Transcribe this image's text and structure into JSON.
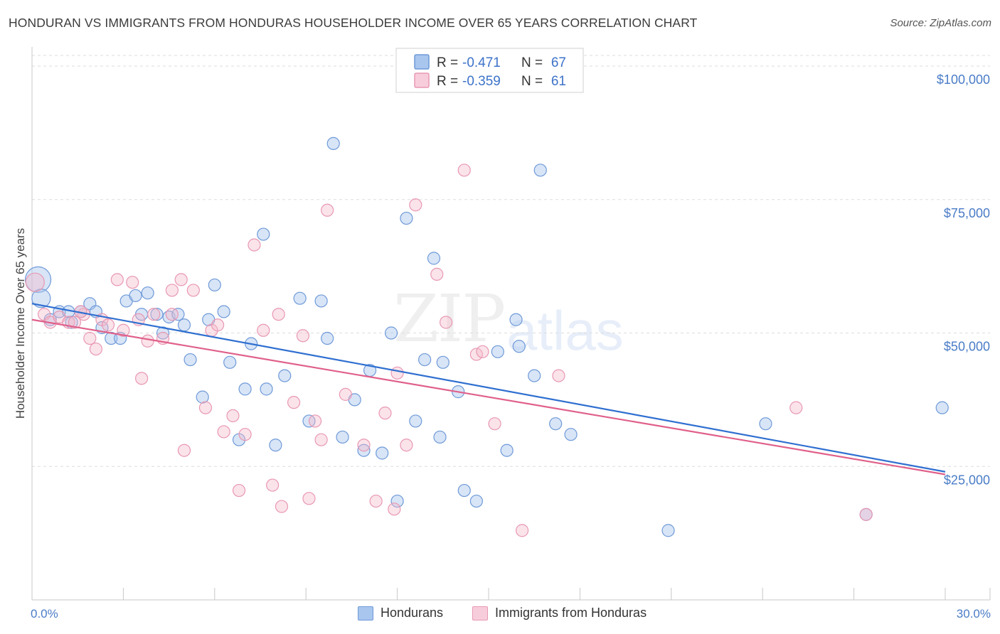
{
  "title": "HONDURAN VS IMMIGRANTS FROM HONDURAS HOUSEHOLDER INCOME OVER 65 YEARS CORRELATION CHART",
  "source": "Source: ZipAtlas.com",
  "watermark": {
    "zip": "ZIP",
    "atlas": "atlas"
  },
  "colors": {
    "blue": "#4a7cc7",
    "blue_fill": "#a9c6ee",
    "pink": "#e0708f",
    "pink_fill": "#f5b8cb",
    "blue_line": "#2f6fd0",
    "pink_line": "#e0608a"
  },
  "legend": {
    "blue": {
      "r_label": "R =",
      "r": "-0.471",
      "n_label": "N =",
      "n": "67"
    },
    "pink": {
      "r_label": "R =",
      "r": "-0.359",
      "n_label": "N =",
      "n": "61"
    }
  },
  "chart_data": {
    "type": "scatter",
    "title": "HONDURAN VS IMMIGRANTS FROM HONDURAS HOUSEHOLDER INCOME OVER 65 YEARS CORRELATION CHART",
    "ylabel": "Householder Income Over 65 years",
    "xlim": [
      0,
      30
    ],
    "ylim": [
      0,
      102000
    ],
    "x_tick_labels": [
      "0.0%",
      "30.0%"
    ],
    "y_tick_labels": [
      "$100,000",
      "$75,000",
      "$50,000",
      "$25,000"
    ],
    "y_ticks": [
      100000,
      75000,
      50000,
      25000
    ],
    "series": [
      {
        "name": "Hondurans",
        "color": "blue",
        "trend": {
          "x": [
            0,
            30
          ],
          "y": [
            55500,
            24000
          ]
        },
        "points": [
          [
            0.2,
            60000,
            3
          ],
          [
            0.3,
            56500,
            2
          ],
          [
            0.6,
            52500,
            1
          ],
          [
            0.9,
            54000,
            1
          ],
          [
            1.2,
            54000,
            1
          ],
          [
            1.3,
            52000,
            1
          ],
          [
            1.6,
            54000,
            1
          ],
          [
            1.9,
            55500,
            1
          ],
          [
            2.1,
            54000,
            1
          ],
          [
            2.3,
            51000,
            1
          ],
          [
            2.6,
            49000,
            1
          ],
          [
            2.9,
            49000,
            1
          ],
          [
            3.1,
            56000,
            1
          ],
          [
            3.4,
            57000,
            1
          ],
          [
            3.6,
            53500,
            1
          ],
          [
            3.8,
            57500,
            1
          ],
          [
            4.1,
            53500,
            1
          ],
          [
            4.3,
            50000,
            1
          ],
          [
            4.5,
            53000,
            1
          ],
          [
            4.8,
            53500,
            1
          ],
          [
            5.0,
            51500,
            1
          ],
          [
            5.2,
            45000,
            1
          ],
          [
            5.6,
            38000,
            1
          ],
          [
            5.8,
            52500,
            1
          ],
          [
            6.0,
            59000,
            1
          ],
          [
            6.3,
            54000,
            1
          ],
          [
            6.5,
            44500,
            1
          ],
          [
            6.8,
            30000,
            1
          ],
          [
            7.0,
            39500,
            1
          ],
          [
            7.2,
            48000,
            1
          ],
          [
            7.6,
            68500,
            1
          ],
          [
            7.7,
            39500,
            1
          ],
          [
            8.0,
            29000,
            1
          ],
          [
            8.3,
            42000,
            1
          ],
          [
            8.8,
            56500,
            1
          ],
          [
            9.1,
            33500,
            1
          ],
          [
            9.5,
            56000,
            1
          ],
          [
            9.7,
            49000,
            1
          ],
          [
            9.9,
            85500,
            1
          ],
          [
            10.2,
            30500,
            1
          ],
          [
            10.6,
            37500,
            1
          ],
          [
            10.9,
            28000,
            1
          ],
          [
            11.1,
            43000,
            1
          ],
          [
            11.5,
            27500,
            1
          ],
          [
            11.8,
            50000,
            1
          ],
          [
            12.0,
            18500,
            1
          ],
          [
            12.3,
            71500,
            1
          ],
          [
            12.6,
            33500,
            1
          ],
          [
            12.9,
            45000,
            1
          ],
          [
            13.2,
            64000,
            1
          ],
          [
            13.4,
            30500,
            1
          ],
          [
            13.5,
            44500,
            1
          ],
          [
            14.0,
            39000,
            1
          ],
          [
            14.2,
            20500,
            1
          ],
          [
            14.6,
            18500,
            1
          ],
          [
            15.3,
            46500,
            1
          ],
          [
            15.6,
            28000,
            1
          ],
          [
            15.9,
            52500,
            1
          ],
          [
            16.0,
            47500,
            1
          ],
          [
            16.5,
            42000,
            1
          ],
          [
            16.7,
            80500,
            1
          ],
          [
            17.2,
            33000,
            1
          ],
          [
            17.7,
            31000,
            1
          ],
          [
            20.9,
            13000,
            1
          ],
          [
            24.1,
            33000,
            1
          ],
          [
            27.4,
            16000,
            1
          ],
          [
            29.9,
            36000,
            1
          ]
        ]
      },
      {
        "name": "Immigrants from Honduras",
        "color": "pink",
        "trend": {
          "x": [
            0,
            30
          ],
          "y": [
            52500,
            23500
          ]
        },
        "points": [
          [
            0.1,
            59500,
            2
          ],
          [
            0.4,
            53500,
            1
          ],
          [
            0.6,
            52000,
            1
          ],
          [
            0.9,
            53000,
            1
          ],
          [
            1.2,
            52000,
            1
          ],
          [
            1.4,
            52000,
            1
          ],
          [
            1.7,
            53500,
            1
          ],
          [
            1.9,
            49000,
            1
          ],
          [
            2.1,
            47000,
            1
          ],
          [
            2.3,
            52500,
            1
          ],
          [
            2.5,
            51500,
            1
          ],
          [
            2.8,
            60000,
            1
          ],
          [
            3.0,
            50500,
            1
          ],
          [
            3.3,
            59500,
            1
          ],
          [
            3.5,
            52500,
            1
          ],
          [
            3.6,
            41500,
            1
          ],
          [
            3.8,
            48500,
            1
          ],
          [
            4.0,
            53500,
            1
          ],
          [
            4.3,
            49000,
            1
          ],
          [
            4.6,
            58000,
            1
          ],
          [
            4.9,
            60000,
            1
          ],
          [
            5.0,
            28000,
            1
          ],
          [
            5.3,
            58000,
            1
          ],
          [
            5.7,
            36000,
            1
          ],
          [
            5.9,
            50500,
            1
          ],
          [
            6.1,
            51500,
            1
          ],
          [
            6.3,
            31500,
            1
          ],
          [
            6.6,
            34500,
            1
          ],
          [
            6.8,
            20500,
            1
          ],
          [
            7.0,
            31000,
            1
          ],
          [
            7.3,
            66500,
            1
          ],
          [
            7.6,
            50500,
            1
          ],
          [
            7.9,
            21500,
            1
          ],
          [
            8.1,
            53500,
            1
          ],
          [
            8.2,
            17500,
            1
          ],
          [
            8.6,
            37000,
            1
          ],
          [
            8.9,
            49500,
            1
          ],
          [
            9.1,
            19000,
            1
          ],
          [
            9.3,
            33500,
            1
          ],
          [
            9.5,
            30000,
            1
          ],
          [
            9.7,
            73000,
            1
          ],
          [
            10.3,
            38500,
            1
          ],
          [
            10.9,
            29000,
            1
          ],
          [
            11.3,
            18500,
            1
          ],
          [
            11.6,
            35000,
            1
          ],
          [
            11.9,
            17000,
            1
          ],
          [
            12.0,
            42500,
            1
          ],
          [
            12.3,
            29000,
            1
          ],
          [
            12.6,
            74000,
            1
          ],
          [
            13.3,
            61000,
            1
          ],
          [
            13.6,
            52000,
            1
          ],
          [
            14.2,
            80500,
            1
          ],
          [
            14.6,
            46000,
            1
          ],
          [
            14.8,
            46500,
            1
          ],
          [
            15.2,
            33000,
            1
          ],
          [
            16.1,
            13000,
            1
          ],
          [
            17.3,
            42000,
            1
          ],
          [
            25.1,
            36000,
            1
          ],
          [
            27.4,
            16000,
            1
          ],
          [
            4.6,
            53500,
            1
          ],
          [
            1.6,
            54000,
            1
          ]
        ]
      }
    ]
  },
  "bottom_legend": [
    "Hondurans",
    "Immigrants from Honduras"
  ]
}
